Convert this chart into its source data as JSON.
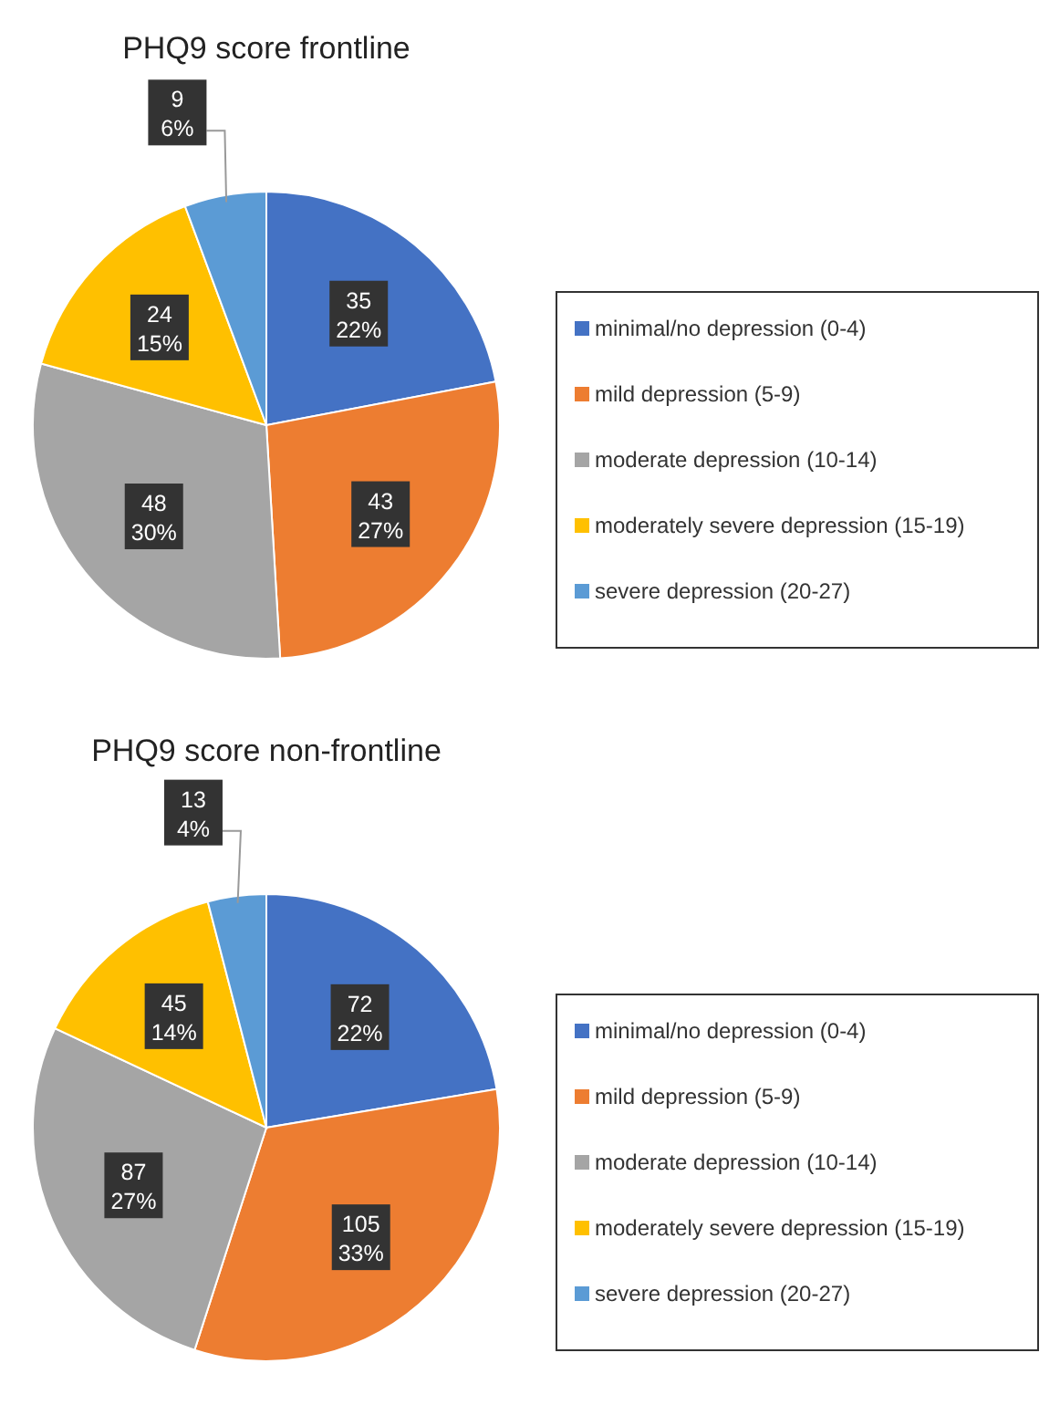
{
  "chart_data": [
    {
      "type": "pie",
      "title": "PHQ9 score frontline",
      "categories": [
        "minimal/no depression (0-4)",
        "mild depression (5-9)",
        "moderate depression (10-14)",
        "moderately severe depression (15-19)",
        "severe depression (20-27)"
      ],
      "values": [
        35,
        43,
        48,
        24,
        9
      ],
      "value_labels": [
        "35\n22%",
        "43\n27%",
        "48\n30%",
        "24\n15%",
        "9\n6%"
      ],
      "colors": [
        "#4472c4",
        "#ed7d31",
        "#a5a5a5",
        "#ffc000",
        "#5b9bd5"
      ],
      "legend": "right"
    },
    {
      "type": "pie",
      "title": "PHQ9 score non-frontline",
      "categories": [
        "minimal/no depression (0-4)",
        "mild depression (5-9)",
        "moderate depression (10-14)",
        "moderately severe depression (15-19)",
        "severe depression (20-27)"
      ],
      "values": [
        72,
        105,
        87,
        45,
        13
      ],
      "value_labels": [
        "72\n22%",
        "105\n33%",
        "87\n27%",
        "45\n14%",
        "13\n4%"
      ],
      "colors": [
        "#4472c4",
        "#ed7d31",
        "#a5a5a5",
        "#ffc000",
        "#5b9bd5"
      ],
      "legend": "right"
    }
  ]
}
